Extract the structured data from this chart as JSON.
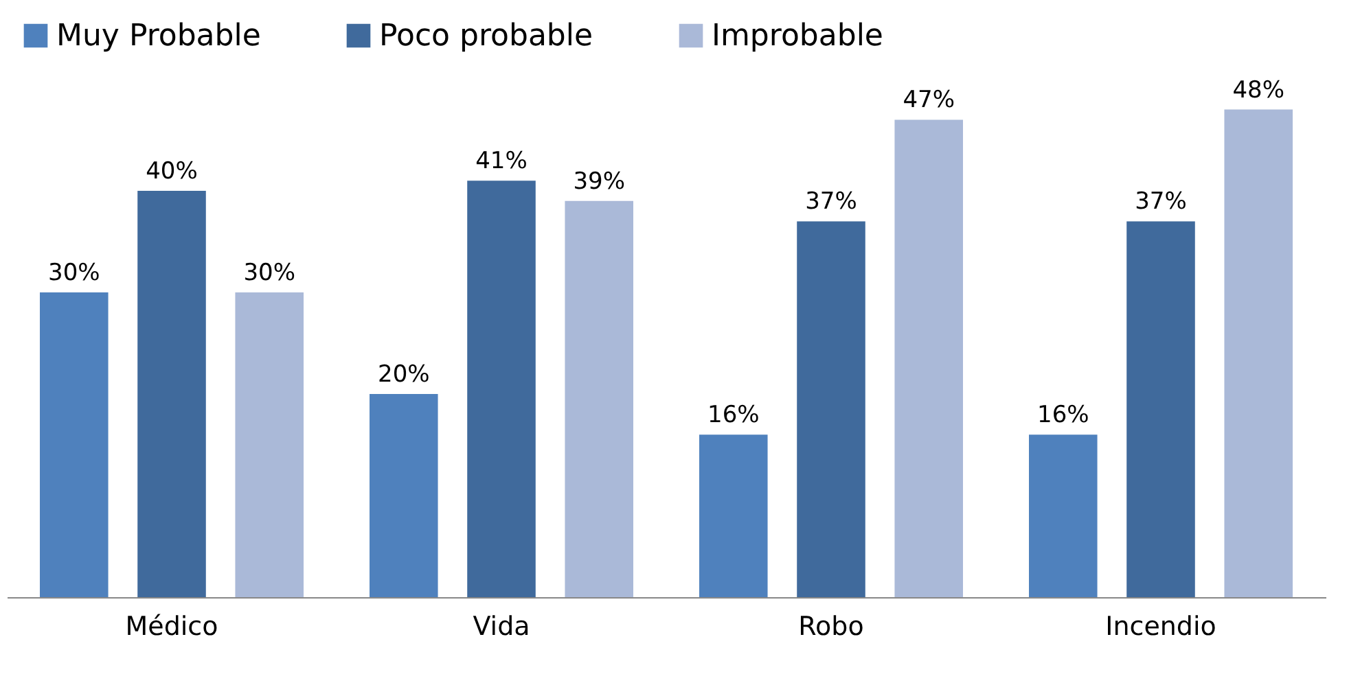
{
  "chart_data": {
    "type": "bar",
    "categories": [
      "Médico",
      "Vida",
      "Robo",
      "Incendio"
    ],
    "series": [
      {
        "name": "Muy Probable",
        "color": "#4f81bd",
        "values": [
          30,
          20,
          16,
          16
        ],
        "value_labels": [
          "30%",
          "20%",
          "16%",
          "16%"
        ]
      },
      {
        "name": "Poco probable",
        "color": "#406a9c",
        "values": [
          40,
          41,
          37,
          37
        ],
        "value_labels": [
          "40%",
          "41%",
          "37%",
          "37%"
        ]
      },
      {
        "name": "Improbable",
        "color": "#aab9d8",
        "values": [
          30,
          39,
          47,
          48
        ],
        "value_labels": [
          "30%",
          "39%",
          "47%",
          "48%"
        ]
      }
    ],
    "legend": "top",
    "grid": false
  }
}
